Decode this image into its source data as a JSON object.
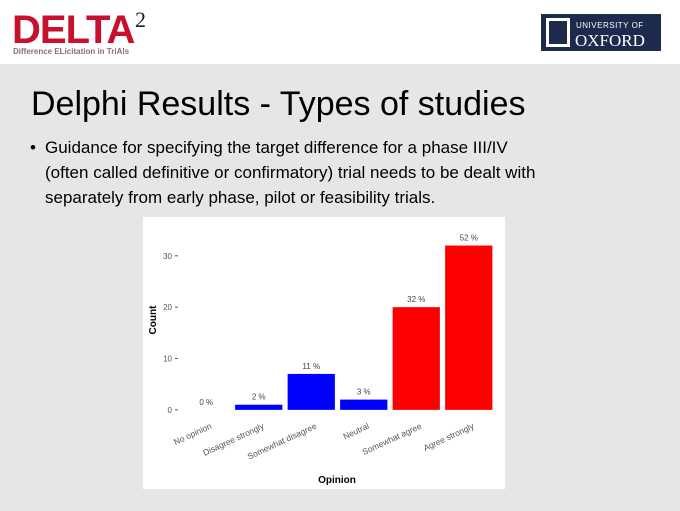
{
  "header": {
    "logo_left": {
      "name": "DELTA",
      "superscript": "2",
      "tagline": "Difference ELicitation in TriAls"
    },
    "logo_right": {
      "line1": "UNIVERSITY OF",
      "line2": "OXFORD"
    }
  },
  "title": "Delphi Results - Types of studies",
  "bullet": {
    "marker": "•",
    "lines": [
      "Guidance for specifying the target difference for a phase III/IV",
      "(often called definitive or confirmatory) trial needs to be dealt with",
      "separately from early phase, pilot or feasibility trials."
    ]
  },
  "chart_data": {
    "type": "bar",
    "x_label": "Opinion",
    "y_label": "Count",
    "categories": [
      "No opinion",
      "Disagree strongly",
      "Somewhat disagree",
      "Neutral",
      "Somewhat agree",
      "Agree strongly"
    ],
    "values": [
      0,
      1,
      7,
      2,
      20,
      32
    ],
    "bar_labels": [
      "0 %",
      "2 %",
      "11 %",
      "3 %",
      "32 %",
      "52 %"
    ],
    "colors": [
      "#0000ff",
      "#0000ff",
      "#0000ff",
      "#0000ff",
      "#ff0000",
      "#ff0000"
    ],
    "ylim": [
      -1,
      36
    ],
    "yticks": [
      0,
      10,
      20,
      30
    ],
    "grid": false
  }
}
